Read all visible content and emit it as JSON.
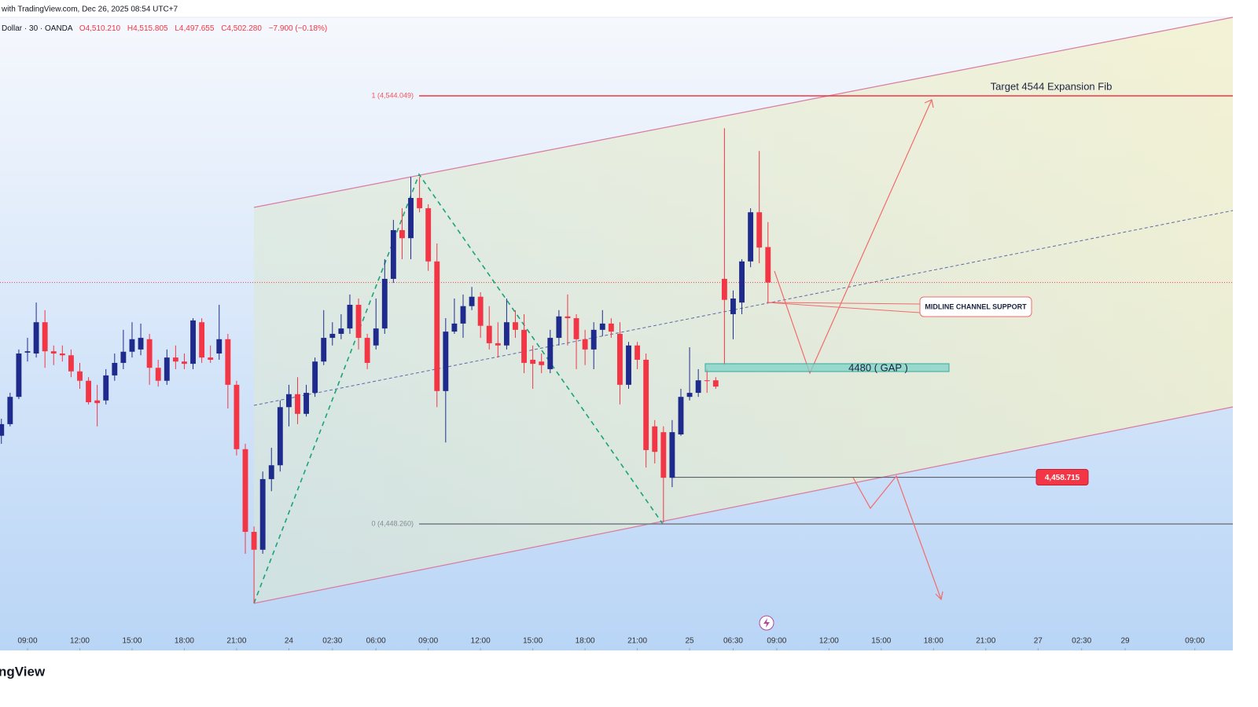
{
  "chart_data": {
    "type": "candlestick",
    "header": "with TradingView.com, Dec 26, 2025 08:54 UTC+7",
    "symbol": "Dollar · 30 · OANDA",
    "ohlc_labels": [
      "O4,510.210",
      "H4,515.805",
      "L4,497.655",
      "C4,502.280"
    ],
    "change": "−7.900 (−0.18%)",
    "logo": "ngView",
    "up_color": "#1f2b8c",
    "down_color": "#f23645",
    "x": [
      -3,
      -2,
      -1,
      0,
      1,
      2,
      3,
      4,
      5,
      6,
      7,
      8,
      9,
      10,
      11,
      12,
      13,
      14,
      15,
      16,
      17,
      18,
      19,
      20,
      21,
      22,
      23,
      24,
      25,
      26,
      27,
      28,
      29,
      30,
      31,
      32,
      33,
      34,
      35,
      36,
      37,
      38,
      39,
      40,
      41,
      42,
      43,
      44,
      45,
      46,
      47,
      48,
      49,
      50,
      51,
      52,
      53,
      54,
      55,
      56,
      57,
      58,
      59,
      60,
      61,
      62,
      63,
      64,
      65,
      66,
      67,
      68,
      69,
      70,
      71,
      72,
      73,
      74,
      75,
      76,
      77,
      78,
      79,
      80,
      81,
      82,
      83,
      84,
      85
    ],
    "open": [
      4468.0,
      4470.6,
      4476.7,
      4486.6,
      4486.4,
      4493.4,
      4486.9,
      4486.4,
      4486.0,
      4482.4,
      4480.3,
      4475.9,
      4475.9,
      4481.5,
      4484.3,
      4486.8,
      4487.3,
      4489.6,
      4483.2,
      4480.3,
      4485.5,
      4484.6,
      4484.1,
      4493.4,
      4485.5,
      4486.4,
      4489.6,
      4479.4,
      4465.0,
      4446.5,
      4442.5,
      4458.3,
      4461.4,
      4474.4,
      4477.3,
      4472.9,
      4477.6,
      4484.6,
      4489.9,
      4490.8,
      4492.0,
      4497.3,
      4489.9,
      4488.2,
      4492.0,
      4503.1,
      4514.0,
      4512.2,
      4521.2,
      4518.9,
      4507.0,
      4478.0,
      4491.3,
      4493.1,
      4497.0,
      4499.1,
      4492.6,
      4488.7,
      4488.2,
      4493.4,
      4491.7,
      4485.0,
      4484.6,
      4482.9,
      4489.9,
      4494.7,
      4494.3,
      4489.6,
      4487.3,
      4491.7,
      4493.1,
      4490.8,
      4479.4,
      4488.2,
      4485.0,
      4470.1,
      4468.8,
      4458.6,
      4468.3,
      4476.7,
      4477.6,
      4480.4,
      4480.4,
      4503.1,
      4495.2,
      4497.8,
      4507.0,
      4518.0,
      4510.21
    ],
    "high": [
      4471.8,
      4477.6,
      4487.3,
      4489.9,
      4497.8,
      4496.1,
      4488.2,
      4488.2,
      4487.3,
      4484.3,
      4481.1,
      4479.4,
      4482.9,
      4486.4,
      4491.7,
      4493.4,
      4493.1,
      4490.8,
      4485.0,
      4487.3,
      4488.2,
      4486.4,
      4494.3,
      4494.3,
      4488.2,
      4497.3,
      4490.8,
      4480.3,
      4466.2,
      4447.7,
      4460.0,
      4465.3,
      4475.9,
      4479.4,
      4481.1,
      4479.4,
      4485.5,
      4496.1,
      4493.4,
      4495.2,
      4499.6,
      4498.7,
      4490.8,
      4498.7,
      4507.5,
      4516.3,
      4518.9,
      4525.9,
      4525.9,
      4519.8,
      4511.0,
      4494.3,
      4498.7,
      4499.6,
      4501.3,
      4500.1,
      4497.0,
      4493.4,
      4498.7,
      4496.1,
      4495.2,
      4488.2,
      4486.4,
      4491.7,
      4496.1,
      4499.6,
      4495.2,
      4491.7,
      4493.4,
      4496.1,
      4494.3,
      4493.4,
      4489.0,
      4489.0,
      4486.4,
      4471.5,
      4470.1,
      4471.5,
      4478.5,
      4487.8,
      4482.9,
      4482.9,
      4481.1,
      4536.8,
      4500.5,
      4507.5,
      4518.9,
      4531.7,
      4515.805
    ],
    "low": [
      4466.2,
      4470.1,
      4476.2,
      4484.6,
      4485.5,
      4483.2,
      4483.8,
      4484.6,
      4481.1,
      4478.5,
      4475.0,
      4470.1,
      4475.0,
      4480.3,
      4482.9,
      4485.5,
      4486.0,
      4479.4,
      4479.0,
      4479.4,
      4482.9,
      4482.9,
      4482.9,
      4484.3,
      4484.3,
      4485.0,
      4474.1,
      4463.6,
      4441.6,
      4430.5,
      4441.6,
      4455.6,
      4460.0,
      4470.1,
      4470.6,
      4472.3,
      4476.7,
      4483.8,
      4488.2,
      4489.6,
      4490.8,
      4487.3,
      4482.9,
      4487.3,
      4490.8,
      4502.2,
      4507.5,
      4507.5,
      4518.0,
      4504.9,
      4474.4,
      4466.5,
      4490.8,
      4489.9,
      4496.1,
      4489.9,
      4487.3,
      4485.5,
      4487.3,
      4489.9,
      4482.0,
      4478.5,
      4482.0,
      4482.0,
      4488.2,
      4488.2,
      4482.9,
      4483.8,
      4482.9,
      4490.3,
      4489.9,
      4475.0,
      4478.5,
      4482.9,
      4460.9,
      4461.8,
      4448.6,
      4456.5,
      4468.0,
      4475.9,
      4476.7,
      4477.6,
      4478.5,
      4483.8,
      4489.6,
      4495.2,
      4505.7,
      4506.6,
      4497.655
    ],
    "close": [
      4470.6,
      4476.7,
      4486.4,
      4486.9,
      4493.4,
      4486.9,
      4486.4,
      4486.0,
      4482.4,
      4480.3,
      4475.5,
      4475.3,
      4481.5,
      4484.3,
      4486.8,
      4489.6,
      4489.9,
      4483.2,
      4480.3,
      4485.5,
      4484.6,
      4484.1,
      4493.8,
      4485.5,
      4485.0,
      4489.6,
      4479.4,
      4465.0,
      4446.5,
      4442.5,
      4458.3,
      4461.4,
      4474.4,
      4477.3,
      4472.9,
      4477.6,
      4484.6,
      4489.9,
      4490.8,
      4492.0,
      4497.3,
      4489.9,
      4484.3,
      4492.0,
      4503.1,
      4514.0,
      4512.2,
      4521.2,
      4518.9,
      4507.0,
      4478.0,
      4491.3,
      4493.1,
      4497.0,
      4499.1,
      4492.6,
      4488.7,
      4488.2,
      4493.4,
      4491.7,
      4484.3,
      4484.1,
      4483.8,
      4489.9,
      4494.7,
      4494.3,
      4489.6,
      4487.3,
      4491.7,
      4493.1,
      4491.3,
      4479.4,
      4488.2,
      4485.0,
      4464.8,
      4464.4,
      4458.6,
      4468.8,
      4476.7,
      4477.6,
      4480.4,
      4480.3,
      4479.0,
      4498.4,
      4498.7,
      4507.0,
      4518.0,
      4510.1,
      4502.28
    ],
    "xlim": [
      -3.16,
      138.36
    ],
    "ylim": [
      4419.97,
      4561.62
    ],
    "xticks": [
      {
        "value": 0,
        "label": "09:00"
      },
      {
        "value": 6,
        "label": "12:00"
      },
      {
        "value": 12,
        "label": "15:00"
      },
      {
        "value": 18,
        "label": "18:00"
      },
      {
        "value": 24,
        "label": "21:00"
      },
      {
        "value": 30,
        "label": "24"
      },
      {
        "value": 35,
        "label": "02:30"
      },
      {
        "value": 40,
        "label": "06:00"
      },
      {
        "value": 46,
        "label": "09:00"
      },
      {
        "value": 52,
        "label": "12:00"
      },
      {
        "value": 58,
        "label": "15:00"
      },
      {
        "value": 64,
        "label": "18:00"
      },
      {
        "value": 70,
        "label": "21:00"
      },
      {
        "value": 76,
        "label": "25"
      },
      {
        "value": 81,
        "label": "06:30"
      },
      {
        "value": 86,
        "label": "09:00"
      },
      {
        "value": 92,
        "label": "12:00"
      },
      {
        "value": 98,
        "label": "15:00"
      },
      {
        "value": 104,
        "label": "18:00"
      },
      {
        "value": 110,
        "label": "21:00"
      },
      {
        "value": 116,
        "label": "27"
      },
      {
        "value": 121,
        "label": "02:30"
      },
      {
        "value": 126,
        "label": "29"
      },
      {
        "value": 134,
        "label": "09:00"
      }
    ],
    "fib_levels": [
      {
        "value": 4544.049,
        "label": "1 (4,544.049)",
        "color": "#f23645"
      },
      {
        "value": 4448.26,
        "label": "0 (4,448.260)",
        "color": "#787b86"
      }
    ],
    "price_label": {
      "value": 4458.715,
      "label": "4,458.715"
    },
    "annotations": [
      "Target 4544 Expansion Fib",
      "MIDLINE CHANNEL SUPPORT",
      "4480 ( GAP )"
    ]
  }
}
